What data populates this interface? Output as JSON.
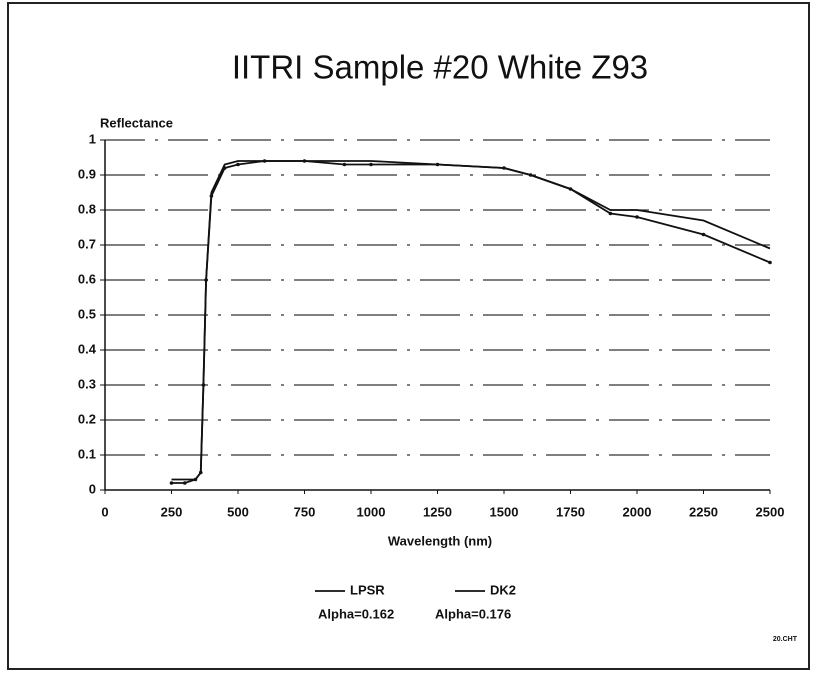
{
  "chart_data": {
    "type": "line",
    "title": "IITRI Sample #20  White Z93",
    "y_label": "Reflectance",
    "x_label": "Wavelength (nm)",
    "footnote": "20.CHT",
    "x": [
      250,
      300,
      340,
      360,
      370,
      380,
      400,
      450,
      500,
      600,
      750,
      900,
      1000,
      1250,
      1500,
      1600,
      1750,
      1900,
      2000,
      2250,
      2500
    ],
    "series": [
      {
        "name": "LPSR",
        "label": "Alpha=0.162",
        "color": "#111111",
        "marker": false,
        "values": [
          0.03,
          0.03,
          0.03,
          0.05,
          0.3,
          0.6,
          0.85,
          0.93,
          0.94,
          0.94,
          0.94,
          0.94,
          0.94,
          0.93,
          0.92,
          0.9,
          0.86,
          0.8,
          0.8,
          0.77,
          0.69
        ]
      },
      {
        "name": "DK2",
        "label": "Alpha=0.176",
        "color": "#111111",
        "marker": true,
        "values": [
          0.02,
          0.02,
          0.03,
          0.05,
          0.3,
          0.6,
          0.84,
          0.92,
          0.93,
          0.94,
          0.94,
          0.93,
          0.93,
          0.93,
          0.92,
          0.9,
          0.86,
          0.79,
          0.78,
          0.73,
          0.65
        ]
      }
    ],
    "xlim": [
      0,
      2500
    ],
    "xticks": [
      0,
      250,
      500,
      750,
      1000,
      1250,
      1500,
      1750,
      2000,
      2250,
      2500
    ],
    "ylim": [
      0,
      1
    ],
    "yticks": [
      0,
      0.1,
      0.2,
      0.3,
      0.4,
      0.5,
      0.6,
      0.7,
      0.8,
      0.9,
      1
    ],
    "grid": true
  }
}
